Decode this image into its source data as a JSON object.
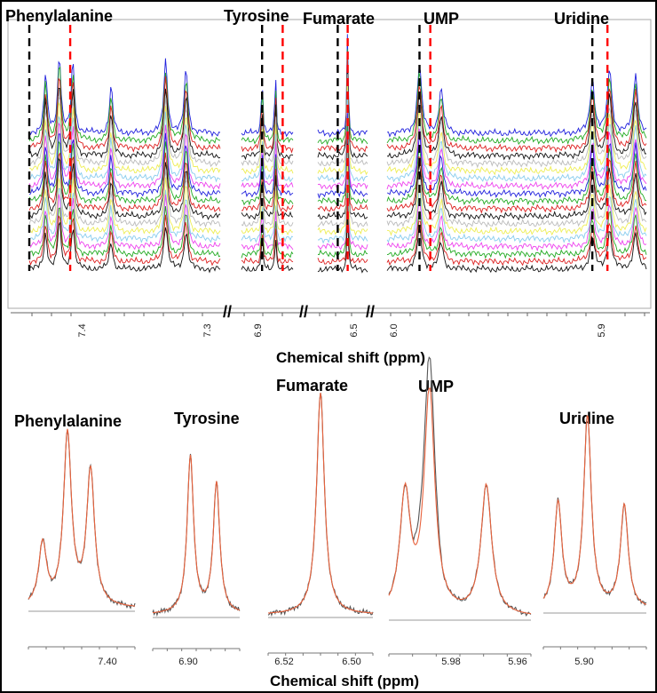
{
  "top_panel": {
    "labels": [
      {
        "text": "Phenylalanine"
      },
      {
        "text": "Tyrosine"
      },
      {
        "text": "Fumarate"
      },
      {
        "text": "UMP"
      },
      {
        "text": "Uridine"
      }
    ],
    "axis_title": "Chemical shift (ppm)",
    "axis_break": "//",
    "tick_labels": [
      "7.4",
      "7.3",
      "6.9",
      "6.5",
      "6.0",
      "5.9"
    ]
  },
  "bottom_panel": {
    "axis_title": "Chemical shift (ppm)",
    "panels": [
      {
        "label": "Phenylalanine",
        "ticks": [
          "7.40"
        ]
      },
      {
        "label": "Tyrosine",
        "ticks": [
          "6.90"
        ]
      },
      {
        "label": "Fumarate",
        "ticks": [
          "6.52",
          "6.50"
        ]
      },
      {
        "label": "UMP",
        "ticks": [
          "5.98",
          "5.96"
        ]
      },
      {
        "label": "Uridine",
        "ticks": [
          "5.90"
        ]
      }
    ]
  },
  "chart_data": [
    {
      "type": "line",
      "title": "",
      "xlabel": "Chemical shift (ppm)",
      "ylabel": "",
      "axis": "reversed, broken",
      "x_segments": [
        [
          7.43,
          7.29
        ],
        [
          6.93,
          6.88
        ],
        [
          6.54,
          6.49
        ],
        [
          6.0,
          5.88
        ]
      ],
      "series_colors": [
        "#2020dd",
        "#22aa22",
        "#dd2020",
        "#111111",
        "#bbbbbb",
        "#eeee55",
        "#88ccee",
        "#ee44ee",
        "#2020dd",
        "#22aa22",
        "#dd2020",
        "#111111",
        "#bbbbbb",
        "#eeee55",
        "#88ccee",
        "#ee44ee",
        "#22aa22",
        "#dd2020",
        "#111111"
      ],
      "marker_colors": {
        "reference": "#000000",
        "shifted": "#ff0000"
      },
      "markers": [
        {
          "metabolite": "Phenylalanine",
          "reference": 7.43,
          "shifted": 7.4
        },
        {
          "metabolite": "Tyrosine",
          "reference": 6.91,
          "shifted": 6.89
        },
        {
          "metabolite": "Fumarate",
          "reference": 6.52,
          "shifted": 6.51
        },
        {
          "metabolite": "UMP",
          "reference": 5.985,
          "shifted": 5.98
        },
        {
          "metabolite": "Uridine",
          "reference": 5.905,
          "shifted": 5.898
        }
      ]
    },
    {
      "type": "line",
      "title": "",
      "xlabel": "Chemical shift (ppm)",
      "series": [
        {
          "color": "#555555"
        },
        {
          "color": "#e8623c"
        }
      ],
      "panels": [
        {
          "metabolite": "Phenylalanine",
          "xlim": [
            7.44,
            7.38
          ],
          "peaks_ppm": [
            7.432,
            7.418,
            7.405
          ],
          "relative_heights": [
            0.34,
            0.94,
            0.74
          ]
        },
        {
          "metabolite": "Tyrosine",
          "xlim": [
            6.915,
            6.885
          ],
          "peaks_ppm": [
            6.902,
            6.893
          ],
          "relative_heights": [
            0.88,
            0.73
          ]
        },
        {
          "metabolite": "Fumarate",
          "xlim": [
            6.525,
            6.495
          ],
          "peaks_ppm": [
            6.51
          ],
          "relative_heights": [
            1.0
          ]
        },
        {
          "metabolite": "UMP",
          "xlim": [
            5.99,
            5.955
          ],
          "peaks_ppm": [
            5.986,
            5.98,
            5.966
          ],
          "relative_heights": [
            0.53,
            1.0,
            0.58
          ]
        },
        {
          "metabolite": "Uridine",
          "xlim": [
            5.906,
            5.892
          ],
          "peaks_ppm": [
            5.904,
            5.9,
            5.895
          ],
          "relative_heights": [
            0.55,
            1.0,
            0.54
          ]
        }
      ]
    }
  ]
}
